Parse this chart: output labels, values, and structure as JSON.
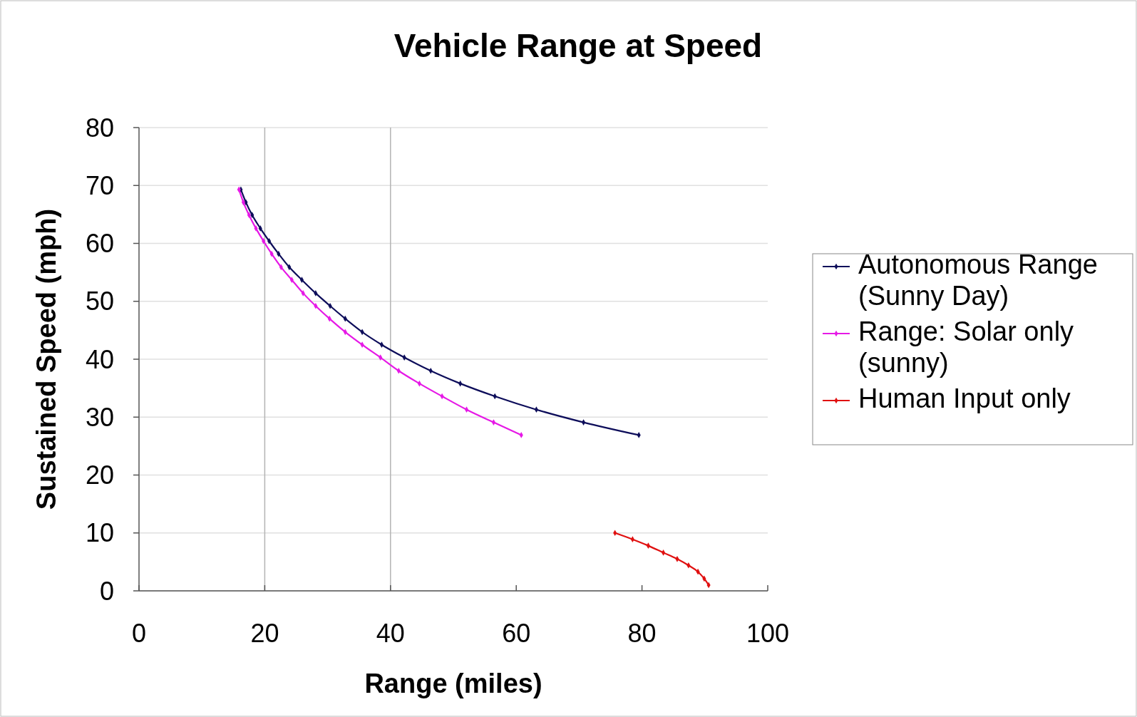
{
  "chart_data": {
    "type": "line",
    "title": "Vehicle Range at Speed",
    "xlabel": "Range (miles)",
    "ylabel": "Sustained Speed (mph)",
    "xlim": [
      0,
      100
    ],
    "xticks": [
      0,
      20,
      40,
      60,
      80,
      100
    ],
    "ylim": [
      0,
      80
    ],
    "yticks": [
      0,
      10,
      20,
      30,
      40,
      50,
      60,
      70,
      80
    ],
    "grid": "y",
    "legend": "right",
    "marker": "diamond",
    "line_style": "solid",
    "ref_lines": [
      {
        "axis": "x",
        "value": 20,
        "color": "#b4b4b4"
      },
      {
        "axis": "x",
        "value": 40,
        "color": "#b4b4b4"
      }
    ],
    "series": [
      {
        "name": "Autonomous Range (Sunny Day)",
        "color": "#0d0d5a",
        "x": [
          16.2,
          17.0,
          18.0,
          19.3,
          20.7,
          22.2,
          23.9,
          25.9,
          28.1,
          30.4,
          32.8,
          35.5,
          38.6,
          42.2,
          46.4,
          51.1,
          56.6,
          63.2,
          70.7,
          79.5
        ],
        "values": [
          69.3,
          67.1,
          64.9,
          62.6,
          60.4,
          58.2,
          55.9,
          53.7,
          51.4,
          49.2,
          47.0,
          44.7,
          42.5,
          40.3,
          38.0,
          35.8,
          33.6,
          31.3,
          29.1,
          26.9
        ]
      },
      {
        "name": "Range: Solar only (sunny)",
        "color": "#e619e6",
        "x": [
          15.9,
          16.6,
          17.5,
          18.6,
          19.8,
          21.1,
          22.6,
          24.3,
          26.1,
          28.1,
          30.3,
          32.8,
          35.5,
          38.4,
          41.3,
          44.6,
          48.2,
          52.1,
          56.4,
          60.8
        ],
        "values": [
          69.3,
          67.1,
          64.9,
          62.6,
          60.4,
          58.2,
          55.9,
          53.7,
          51.4,
          49.2,
          47.0,
          44.7,
          42.5,
          40.3,
          38.0,
          35.8,
          33.6,
          31.3,
          29.1,
          26.9
        ]
      },
      {
        "name": "Human Input only",
        "color": "#e01010",
        "x": [
          75.7,
          78.5,
          81.0,
          83.4,
          85.6,
          87.4,
          88.9,
          89.9,
          90.6
        ],
        "values": [
          10.0,
          8.9,
          7.8,
          6.6,
          5.5,
          4.4,
          3.3,
          2.1,
          1.0
        ]
      }
    ]
  }
}
